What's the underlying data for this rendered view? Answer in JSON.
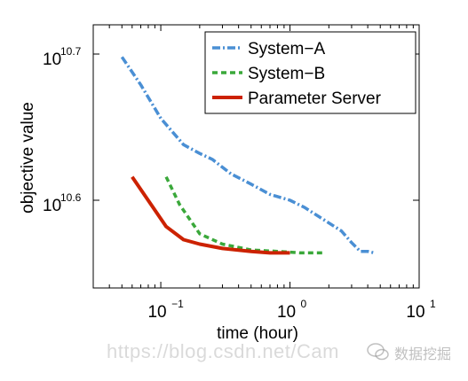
{
  "chart_data": {
    "type": "line",
    "title": "",
    "xlabel": "time (hour)",
    "ylabel": "objective value",
    "x_scale": "log",
    "y_scale": "log",
    "xlim": [
      0.03,
      10
    ],
    "ylim": [
      10.54,
      10.72
    ],
    "x_ticks": [
      {
        "value": 0.1,
        "base": "10",
        "exp": "−1"
      },
      {
        "value": 1,
        "base": "10",
        "exp": "0"
      },
      {
        "value": 10,
        "base": "10",
        "exp": "1"
      }
    ],
    "y_ticks": [
      {
        "value": 10.6,
        "base": "10",
        "exp": "10.6"
      },
      {
        "value": 10.7,
        "base": "10",
        "exp": "10.7"
      }
    ],
    "legend_position": "top-right",
    "grid": false,
    "series": [
      {
        "name": "System−A",
        "style": "dashdot",
        "color": "#4a8fd4",
        "x": [
          0.05,
          0.07,
          0.1,
          0.15,
          0.2,
          0.25,
          0.35,
          0.5,
          0.7,
          1.0,
          1.3,
          1.8,
          2.5,
          3.0,
          3.5,
          4.0,
          4.5
        ],
        "y": [
          10.698,
          10.679,
          10.656,
          10.638,
          10.632,
          10.628,
          10.618,
          10.611,
          10.604,
          10.6,
          10.595,
          10.587,
          10.579,
          10.571,
          10.565,
          10.565,
          10.564
        ]
      },
      {
        "name": "System−B",
        "style": "dashed",
        "color": "#3aa83a",
        "x": [
          0.11,
          0.14,
          0.2,
          0.3,
          0.5,
          0.8,
          1.2,
          1.8
        ],
        "y": [
          10.616,
          10.597,
          10.577,
          10.57,
          10.566,
          10.565,
          10.564,
          10.564
        ]
      },
      {
        "name": "Parameter Server",
        "style": "solid",
        "color": "#cc2200",
        "x": [
          0.06,
          0.11,
          0.15,
          0.2,
          0.3,
          0.5,
          0.7,
          1.0
        ],
        "y": [
          10.616,
          10.582,
          10.573,
          10.57,
          10.567,
          10.565,
          10.564,
          10.564
        ]
      }
    ]
  },
  "watermark": {
    "text": "https://blog.csdn.net/Cam",
    "brand": "数据挖掘"
  }
}
